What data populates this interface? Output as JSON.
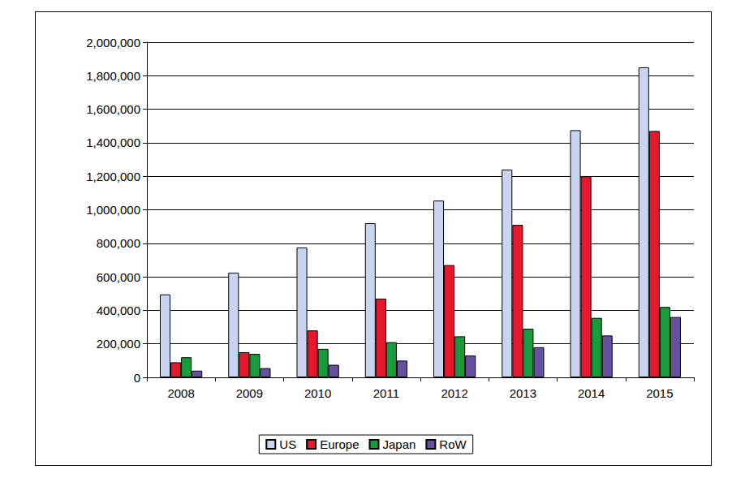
{
  "chart_data": {
    "type": "bar",
    "categories": [
      "2008",
      "2009",
      "2010",
      "2011",
      "2012",
      "2013",
      "2014",
      "2015"
    ],
    "series": [
      {
        "name": "US",
        "color": "#c9d4f0",
        "values": [
          495000,
          625000,
          775000,
          920000,
          1055000,
          1240000,
          1475000,
          1850000
        ]
      },
      {
        "name": "Europe",
        "color": "#e8182c",
        "values": [
          90000,
          150000,
          280000,
          470000,
          670000,
          910000,
          1200000,
          1470000
        ]
      },
      {
        "name": "Japan",
        "color": "#1a9a3a",
        "values": [
          120000,
          140000,
          170000,
          210000,
          245000,
          290000,
          355000,
          420000
        ]
      },
      {
        "name": "RoW",
        "color": "#6650a0",
        "values": [
          40000,
          55000,
          75000,
          100000,
          130000,
          180000,
          250000,
          360000
        ]
      }
    ],
    "ylim": [
      0,
      2000000
    ],
    "yticks": [
      0,
      {
        "value": 200000,
        "label": "200,000"
      },
      {
        "value": 400000,
        "label": "400,000"
      },
      {
        "value": 600000,
        "label": "600,000"
      },
      {
        "value": 800000,
        "label": "800,000"
      },
      {
        "value": 1000000,
        "label": "1,000,000"
      },
      {
        "value": 1200000,
        "label": "1,200,000"
      },
      {
        "value": 1400000,
        "label": "1,400,000"
      },
      {
        "value": 1600000,
        "label": "1,600,000"
      },
      {
        "value": 1800000,
        "label": "1,800,000"
      },
      {
        "value": 2000000,
        "label": "2,000,000"
      }
    ],
    "grid": true,
    "legend": "bottom"
  }
}
